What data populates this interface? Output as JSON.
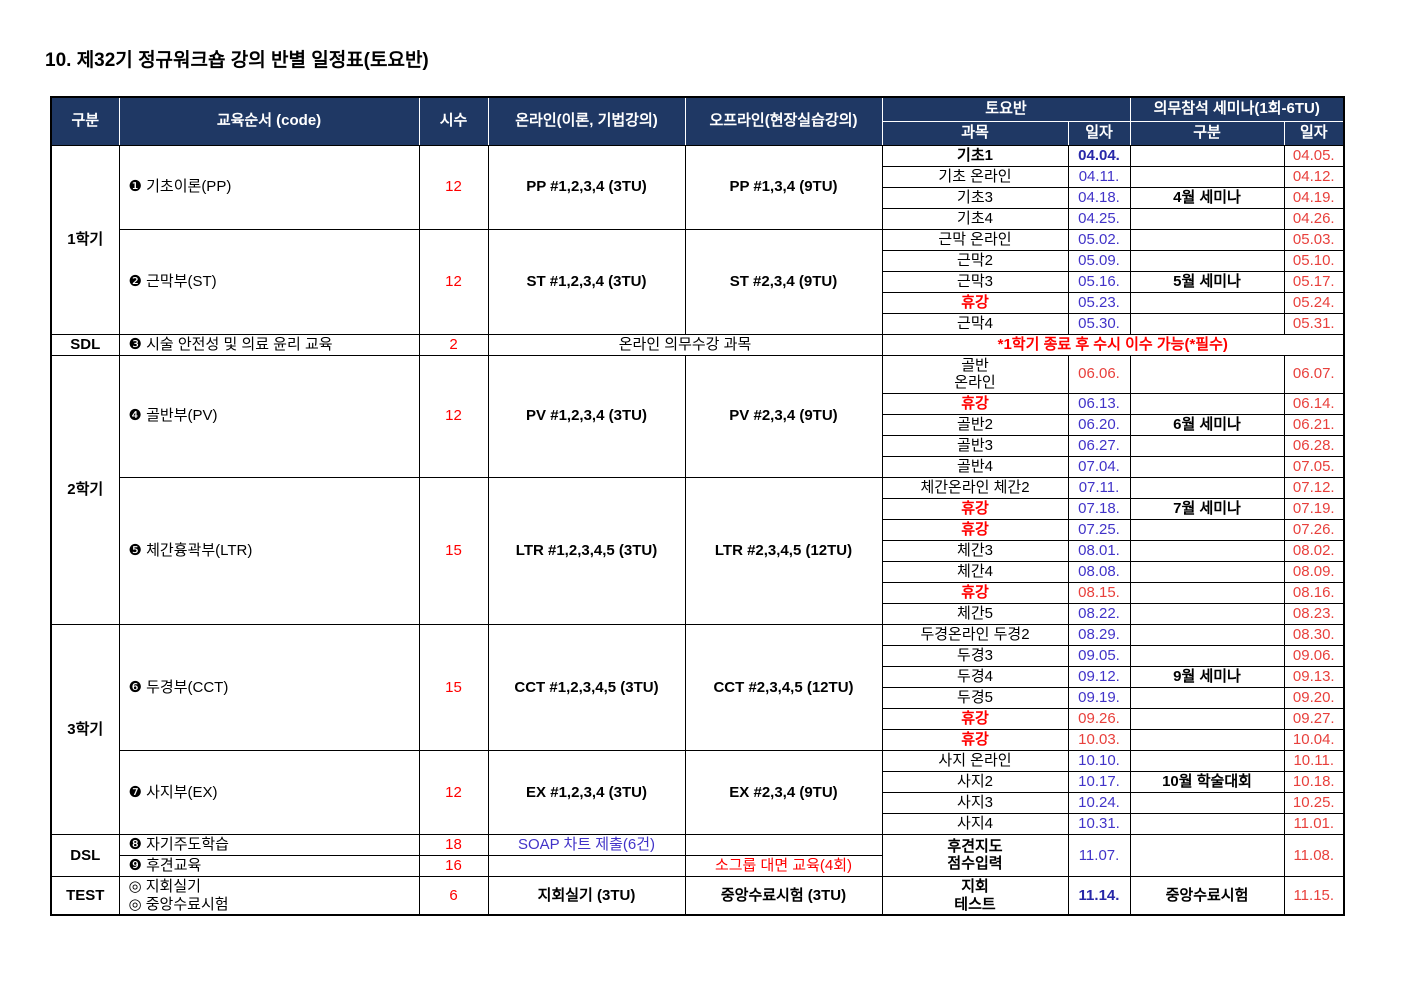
{
  "title": "10. 제32기 정규워크숍 강의 반별 일정표(토요반)",
  "colors": {
    "header_bg": "#1F3864",
    "header_text": "#FFFFFF",
    "red": "#FF0000",
    "date_blue": "#4133C8",
    "date_navy": "#2828A8",
    "date_red": "#E8403C",
    "border": "#000000"
  },
  "header": {
    "rows": [
      [
        {
          "t": "구분",
          "k": "h",
          "rs": 2,
          "n": "header-category"
        },
        {
          "t": "교육순서 (code)",
          "k": "h",
          "rs": 2,
          "n": "header-course-order"
        },
        {
          "t": "시수",
          "k": "h",
          "rs": 2,
          "n": "header-hours"
        },
        {
          "t": "온라인(이론, 기법강의)",
          "k": "h",
          "rs": 2,
          "n": "header-online"
        },
        {
          "t": "오프라인(현장실습강의)",
          "k": "h",
          "rs": 2,
          "n": "header-offline"
        },
        {
          "t": "토요반",
          "k": "h",
          "cs": 2,
          "n": "header-saturday-class"
        },
        {
          "t": "의무참석 세미나(1회-6TU)",
          "k": "h",
          "cs": 2,
          "n": "header-mandatory-seminar"
        }
      ],
      [
        {
          "t": "과목",
          "k": "h",
          "n": "header-subject"
        },
        {
          "t": "일자",
          "k": "h",
          "n": "header-date"
        },
        {
          "t": "구분",
          "k": "h",
          "n": "header-seminar-category"
        },
        {
          "t": "일자",
          "k": "h",
          "n": "header-seminar-date"
        }
      ]
    ]
  },
  "rows": [
    [
      {
        "t": "1학기",
        "k": "sec",
        "rs": 9,
        "n": "section-semester-1"
      },
      {
        "t": "❶ 기초이론(PP)",
        "k": "ord",
        "rs": 4,
        "n": "course-basic-theory-pp"
      },
      {
        "t": "12",
        "k": "hrs",
        "rs": 4
      },
      {
        "t": "PP #1,2,3,4 (3TU)",
        "k": "code",
        "rs": 4
      },
      {
        "t": "PP #1,3,4 (9TU)",
        "k": "code",
        "rs": 4
      },
      {
        "t": "기초1",
        "k": "subjb"
      },
      {
        "t": "04.04.",
        "k": "dbb"
      },
      {
        "t": "",
        "k": "sem"
      },
      {
        "t": "04.05.",
        "k": "dr"
      }
    ],
    [
      {
        "t": "기초 온라인",
        "k": "subj"
      },
      {
        "t": "04.11.",
        "k": "db"
      },
      {
        "t": "",
        "k": "sem"
      },
      {
        "t": "04.12.",
        "k": "dr"
      }
    ],
    [
      {
        "t": "기초3",
        "k": "subj"
      },
      {
        "t": "04.18.",
        "k": "db"
      },
      {
        "t": "4월 세미나",
        "k": "sem",
        "n": "seminar-april"
      },
      {
        "t": "04.19.",
        "k": "dr"
      }
    ],
    [
      {
        "t": "기초4",
        "k": "subj"
      },
      {
        "t": "04.25.",
        "k": "db"
      },
      {
        "t": "",
        "k": "sem"
      },
      {
        "t": "04.26.",
        "k": "dr"
      }
    ],
    [
      {
        "t": "❷ 근막부(ST)",
        "k": "ord",
        "rs": 5,
        "n": "course-fascia-st"
      },
      {
        "t": "12",
        "k": "hrs",
        "rs": 5
      },
      {
        "t": "ST #1,2,3,4 (3TU)",
        "k": "code",
        "rs": 5
      },
      {
        "t": "ST #2,3,4 (9TU)",
        "k": "code",
        "rs": 5
      },
      {
        "t": "근막 온라인",
        "k": "subj"
      },
      {
        "t": "05.02.",
        "k": "db"
      },
      {
        "t": "",
        "k": "sem"
      },
      {
        "t": "05.03.",
        "k": "dr"
      }
    ],
    [
      {
        "t": "근막2",
        "k": "subj"
      },
      {
        "t": "05.09.",
        "k": "db"
      },
      {
        "t": "",
        "k": "sem"
      },
      {
        "t": "05.10.",
        "k": "dr"
      }
    ],
    [
      {
        "t": "근막3",
        "k": "subj"
      },
      {
        "t": "05.16.",
        "k": "db"
      },
      {
        "t": "5월 세미나",
        "k": "sem",
        "n": "seminar-may"
      },
      {
        "t": "05.17.",
        "k": "dr"
      }
    ],
    [
      {
        "t": "휴강",
        "k": "hol"
      },
      {
        "t": "05.23.",
        "k": "db"
      },
      {
        "t": "",
        "k": "sem"
      },
      {
        "t": "05.24.",
        "k": "dr"
      }
    ],
    [
      {
        "t": "근막4",
        "k": "subj"
      },
      {
        "t": "05.30.",
        "k": "db"
      },
      {
        "t": "",
        "k": "sem"
      },
      {
        "t": "05.31.",
        "k": "dr"
      }
    ],
    [
      {
        "t": "SDL",
        "k": "sec",
        "n": "section-sdl"
      },
      {
        "t": "❸ 시술 안전성 및 의료 윤리 교육",
        "k": "ord",
        "n": "course-safety-ethics"
      },
      {
        "t": "2",
        "k": "hrs"
      },
      {
        "t": "온라인 의무수강 과목",
        "k": "mand",
        "cs": 2,
        "n": "mandatory-online-note"
      },
      {
        "t": "*1학기 종료 후 수시 이수 가능(*필수)",
        "k": "sdlnote",
        "cs": 4,
        "n": "sdl-completion-note"
      }
    ],
    [
      {
        "t": "2학기",
        "k": "sec",
        "rs": 12,
        "n": "section-semester-2"
      },
      {
        "t": "❹ 골반부(PV)",
        "k": "ord",
        "rs": 5,
        "n": "course-pelvis-pv"
      },
      {
        "t": "12",
        "k": "hrs",
        "rs": 5
      },
      {
        "t": "PV #1,2,3,4 (3TU)",
        "k": "code",
        "rs": 5
      },
      {
        "t": "PV #2,3,4 (9TU)",
        "k": "code",
        "rs": 5
      },
      {
        "t": "골반\n온라인",
        "k": "subj"
      },
      {
        "t": "06.06.",
        "k": "drs"
      },
      {
        "t": "",
        "k": "sem"
      },
      {
        "t": "06.07.",
        "k": "dr"
      }
    ],
    [
      {
        "t": "휴강",
        "k": "hol"
      },
      {
        "t": "06.13.",
        "k": "db"
      },
      {
        "t": "",
        "k": "sem"
      },
      {
        "t": "06.14.",
        "k": "dr"
      }
    ],
    [
      {
        "t": "골반2",
        "k": "subj"
      },
      {
        "t": "06.20.",
        "k": "db"
      },
      {
        "t": "6월 세미나",
        "k": "sem",
        "n": "seminar-june"
      },
      {
        "t": "06.21.",
        "k": "dr"
      }
    ],
    [
      {
        "t": "골반3",
        "k": "subj"
      },
      {
        "t": "06.27.",
        "k": "db"
      },
      {
        "t": "",
        "k": "sem"
      },
      {
        "t": "06.28.",
        "k": "dr"
      }
    ],
    [
      {
        "t": "골반4",
        "k": "subj"
      },
      {
        "t": "07.04.",
        "k": "db"
      },
      {
        "t": "",
        "k": "sem"
      },
      {
        "t": "07.05.",
        "k": "dr"
      }
    ],
    [
      {
        "t": "❺ 체간흉곽부(LTR)",
        "k": "ord",
        "rs": 7,
        "n": "course-trunk-ltr"
      },
      {
        "t": "15",
        "k": "hrs",
        "rs": 7
      },
      {
        "t": "LTR #1,2,3,4,5 (3TU)",
        "k": "code",
        "rs": 7
      },
      {
        "t": "LTR #2,3,4,5 (12TU)",
        "k": "code",
        "rs": 7
      },
      {
        "t": "체간온라인 체간2",
        "k": "subj"
      },
      {
        "t": "07.11.",
        "k": "db"
      },
      {
        "t": "",
        "k": "sem"
      },
      {
        "t": "07.12.",
        "k": "dr"
      }
    ],
    [
      {
        "t": "휴강",
        "k": "hol"
      },
      {
        "t": "07.18.",
        "k": "db"
      },
      {
        "t": "7월 세미나",
        "k": "sem",
        "n": "seminar-july"
      },
      {
        "t": "07.19.",
        "k": "dr"
      }
    ],
    [
      {
        "t": "휴강",
        "k": "hol"
      },
      {
        "t": "07.25.",
        "k": "db"
      },
      {
        "t": "",
        "k": "sem"
      },
      {
        "t": "07.26.",
        "k": "dr"
      }
    ],
    [
      {
        "t": "체간3",
        "k": "subj"
      },
      {
        "t": "08.01.",
        "k": "db"
      },
      {
        "t": "",
        "k": "sem"
      },
      {
        "t": "08.02.",
        "k": "dr"
      }
    ],
    [
      {
        "t": "체간4",
        "k": "subj"
      },
      {
        "t": "08.08.",
        "k": "db"
      },
      {
        "t": "",
        "k": "sem"
      },
      {
        "t": "08.09.",
        "k": "dr"
      }
    ],
    [
      {
        "t": "휴강",
        "k": "hol"
      },
      {
        "t": "08.15.",
        "k": "drs"
      },
      {
        "t": "",
        "k": "sem"
      },
      {
        "t": "08.16.",
        "k": "dr"
      }
    ],
    [
      {
        "t": "체간5",
        "k": "subj"
      },
      {
        "t": "08.22.",
        "k": "db"
      },
      {
        "t": "",
        "k": "sem"
      },
      {
        "t": "08.23.",
        "k": "dr"
      }
    ],
    [
      {
        "t": "3학기",
        "k": "sec",
        "rs": 10,
        "n": "section-semester-3"
      },
      {
        "t": "❻ 두경부(CCT)",
        "k": "ord",
        "rs": 6,
        "n": "course-head-neck-cct"
      },
      {
        "t": "15",
        "k": "hrs",
        "rs": 6
      },
      {
        "t": "CCT #1,2,3,4,5 (3TU)",
        "k": "code",
        "rs": 6
      },
      {
        "t": "CCT #2,3,4,5 (12TU)",
        "k": "code",
        "rs": 6
      },
      {
        "t": "두경온라인 두경2",
        "k": "subj"
      },
      {
        "t": "08.29.",
        "k": "db"
      },
      {
        "t": "",
        "k": "sem"
      },
      {
        "t": "08.30.",
        "k": "dr"
      }
    ],
    [
      {
        "t": "두경3",
        "k": "subj"
      },
      {
        "t": "09.05.",
        "k": "db"
      },
      {
        "t": "",
        "k": "sem"
      },
      {
        "t": "09.06.",
        "k": "dr"
      }
    ],
    [
      {
        "t": "두경4",
        "k": "subj"
      },
      {
        "t": "09.12.",
        "k": "db"
      },
      {
        "t": "9월 세미나",
        "k": "sem",
        "n": "seminar-september"
      },
      {
        "t": "09.13.",
        "k": "dr"
      }
    ],
    [
      {
        "t": "두경5",
        "k": "subj"
      },
      {
        "t": "09.19.",
        "k": "db"
      },
      {
        "t": "",
        "k": "sem"
      },
      {
        "t": "09.20.",
        "k": "dr"
      }
    ],
    [
      {
        "t": "휴강",
        "k": "hol"
      },
      {
        "t": "09.26.",
        "k": "drs"
      },
      {
        "t": "",
        "k": "sem"
      },
      {
        "t": "09.27.",
        "k": "dr"
      }
    ],
    [
      {
        "t": "휴강",
        "k": "hol"
      },
      {
        "t": "10.03.",
        "k": "drs"
      },
      {
        "t": "",
        "k": "sem"
      },
      {
        "t": "10.04.",
        "k": "dr"
      }
    ],
    [
      {
        "t": "❼ 사지부(EX)",
        "k": "ord",
        "rs": 4,
        "n": "course-extremities-ex"
      },
      {
        "t": "12",
        "k": "hrs",
        "rs": 4
      },
      {
        "t": "EX #1,2,3,4 (3TU)",
        "k": "code",
        "rs": 4
      },
      {
        "t": "EX #2,3,4 (9TU)",
        "k": "code",
        "rs": 4
      },
      {
        "t": "사지 온라인",
        "k": "subj"
      },
      {
        "t": "10.10.",
        "k": "db"
      },
      {
        "t": "",
        "k": "sem"
      },
      {
        "t": "10.11.",
        "k": "dr"
      }
    ],
    [
      {
        "t": "사지2",
        "k": "subj"
      },
      {
        "t": "10.17.",
        "k": "db"
      },
      {
        "t": "10월 학술대회",
        "k": "sem",
        "n": "seminar-october-conference"
      },
      {
        "t": "10.18.",
        "k": "dr"
      }
    ],
    [
      {
        "t": "사지3",
        "k": "subj"
      },
      {
        "t": "10.24.",
        "k": "db"
      },
      {
        "t": "",
        "k": "sem"
      },
      {
        "t": "10.25.",
        "k": "dr"
      }
    ],
    [
      {
        "t": "사지4",
        "k": "subj"
      },
      {
        "t": "10.31.",
        "k": "db"
      },
      {
        "t": "",
        "k": "sem"
      },
      {
        "t": "11.01.",
        "k": "dr"
      }
    ],
    [
      {
        "t": "DSL",
        "k": "sec",
        "rs": 2,
        "n": "section-dsl"
      },
      {
        "t": "❽ 자기주도학습",
        "k": "ord",
        "n": "course-self-directed-learning"
      },
      {
        "t": "18",
        "k": "hrs"
      },
      {
        "t": "SOAP 차트 제출(6건)",
        "k": "noteb",
        "n": "soap-chart-note"
      },
      {
        "t": "",
        "k": "code"
      },
      {
        "t": "후견지도\n점수입력",
        "k": "subjb",
        "rs": 2,
        "n": "mentoring-score-entry"
      },
      {
        "t": "11.07.",
        "k": "db",
        "rs": 2
      },
      {
        "t": "",
        "k": "sem",
        "rs": 2
      },
      {
        "t": "11.08.",
        "k": "dr",
        "rs": 2
      }
    ],
    [
      {
        "t": "❾ 후견교육",
        "k": "ord",
        "n": "course-mentoring-education"
      },
      {
        "t": "16",
        "k": "hrs"
      },
      {
        "t": "",
        "k": "code"
      },
      {
        "t": "소그룹 대면 교육(4회)",
        "k": "noter",
        "n": "small-group-note"
      }
    ],
    [
      {
        "t": "TEST",
        "k": "sec",
        "n": "section-test"
      },
      {
        "t": "◎ 지회실기\n◎ 중앙수료시험",
        "k": "ord",
        "n": "course-final-exams"
      },
      {
        "t": "6",
        "k": "hrs"
      },
      {
        "t": "지회실기 (3TU)",
        "k": "code"
      },
      {
        "t": "중앙수료시험 (3TU)",
        "k": "code"
      },
      {
        "t": "지회\n테스트",
        "k": "subjb"
      },
      {
        "t": "11.14.",
        "k": "dbb"
      },
      {
        "t": "중앙수료시험",
        "k": "sem",
        "n": "central-completion-exam"
      },
      {
        "t": "11.15.",
        "k": "dr"
      }
    ]
  ]
}
